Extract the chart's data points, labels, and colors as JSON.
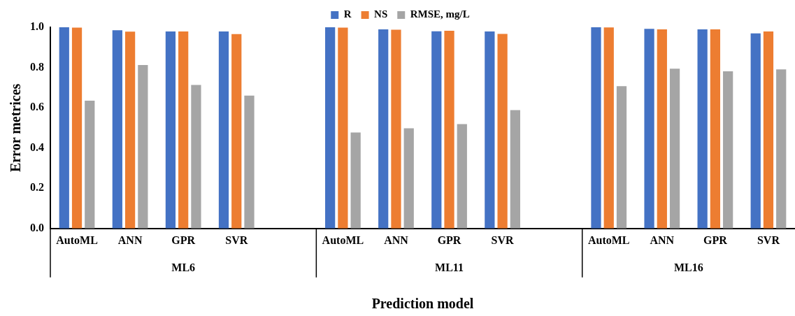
{
  "chart_data": {
    "type": "bar",
    "xlabel": "Prediction model",
    "ylabel": "Error metrices",
    "categories": [
      "AutoML",
      "ANN",
      "GPR",
      "SVR",
      null,
      "AutoML",
      "ANN",
      "GPR",
      "SVR",
      null,
      "AutoML",
      "ANN",
      "GPR",
      "SVR"
    ],
    "series": [
      {
        "name": "R",
        "color": "#4472c4",
        "values": [
          1.0,
          0.985,
          0.979,
          0.979,
          null,
          1.0,
          0.99,
          0.98,
          0.979,
          null,
          1.0,
          0.992,
          0.99,
          0.97
        ]
      },
      {
        "name": "NS",
        "color": "#ed7d31",
        "values": [
          0.998,
          0.978,
          0.979,
          0.966,
          null,
          0.998,
          0.988,
          0.983,
          0.967,
          null,
          0.999,
          0.99,
          0.99,
          0.979
        ]
      },
      {
        "name": "RMSE, mg/L",
        "color": "#a5a5a5",
        "values": [
          0.635,
          0.812,
          0.713,
          0.66,
          null,
          0.477,
          0.498,
          0.519,
          0.588,
          null,
          0.707,
          0.794,
          0.781,
          0.791
        ]
      }
    ],
    "annotations": [
      "ML6",
      "ML11",
      "ML16"
    ],
    "ylim": [
      0,
      1.0
    ],
    "yticks": [
      {
        "value": 0,
        "label": "0.0"
      },
      {
        "value": 0.2,
        "label": "0.2"
      },
      {
        "value": 0.4,
        "label": "0.4"
      },
      {
        "value": 0.6,
        "label": "0.6"
      },
      {
        "value": 0.8,
        "label": "0.8"
      },
      {
        "value": 1.0,
        "label": "1.0"
      }
    ],
    "grid": false,
    "legend": "top"
  }
}
